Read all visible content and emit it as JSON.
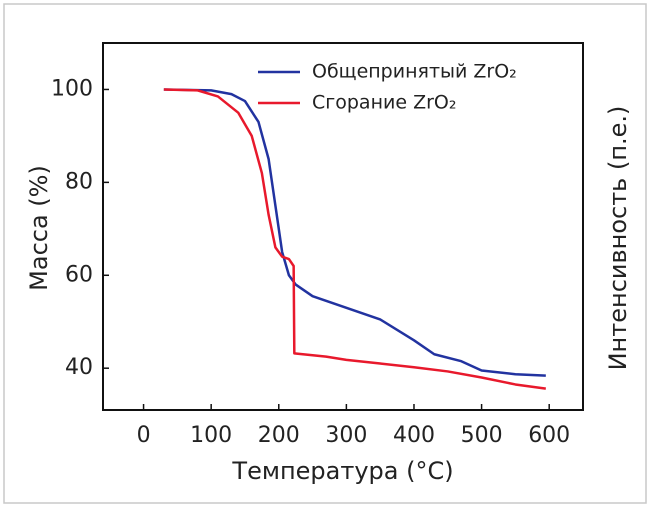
{
  "chart_data": {
    "type": "line",
    "xlabel": "Температура (°C)",
    "ylabel": "Масса (%)",
    "y2label": "Интенсивность (п.е.)",
    "xlim": [
      -60,
      650
    ],
    "xticks": [
      0,
      100,
      200,
      300,
      400,
      500,
      600
    ],
    "ylim": [
      31,
      110
    ],
    "yticks": [
      40,
      60,
      80,
      100
    ],
    "grid": false,
    "legend": "upper right",
    "series": [
      {
        "name": "Общепринятый ZrO₂",
        "color": "#2233a0",
        "x": [
          30,
          100,
          130,
          150,
          170,
          185,
          195,
          205,
          215,
          225,
          250,
          300,
          350,
          400,
          430,
          470,
          500,
          550,
          595
        ],
        "values": [
          100,
          99.8,
          99,
          97.5,
          93,
          85,
          75,
          65,
          60,
          58,
          55.5,
          53,
          50.5,
          46,
          43,
          41.5,
          39.5,
          38.7,
          38.4
        ]
      },
      {
        "name": "Сгорание ZrO₂",
        "color": "#e8192c",
        "x": [
          30,
          80,
          110,
          140,
          160,
          175,
          185,
          195,
          205,
          215,
          222,
          223,
          270,
          300,
          350,
          400,
          450,
          500,
          550,
          595
        ],
        "values": [
          100,
          99.8,
          98.5,
          95,
          90,
          82,
          73,
          66,
          64,
          63.5,
          62,
          43.2,
          42.5,
          41.8,
          41,
          40.2,
          39.3,
          38,
          36.5,
          35.6
        ]
      }
    ]
  }
}
